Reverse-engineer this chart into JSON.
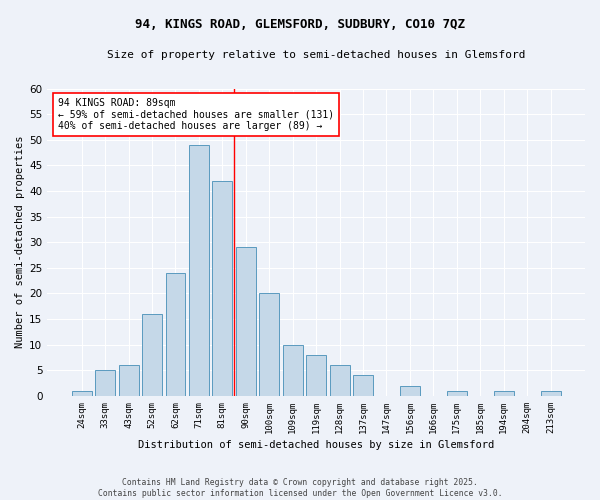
{
  "title1": "94, KINGS ROAD, GLEMSFORD, SUDBURY, CO10 7QZ",
  "title2": "Size of property relative to semi-detached houses in Glemsford",
  "xlabel": "Distribution of semi-detached houses by size in Glemsford",
  "ylabel": "Number of semi-detached properties",
  "categories": [
    "24sqm",
    "33sqm",
    "43sqm",
    "52sqm",
    "62sqm",
    "71sqm",
    "81sqm",
    "90sqm",
    "100sqm",
    "109sqm",
    "119sqm",
    "128sqm",
    "137sqm",
    "147sqm",
    "156sqm",
    "166sqm",
    "175sqm",
    "185sqm",
    "194sqm",
    "204sqm",
    "213sqm"
  ],
  "values": [
    1,
    5,
    6,
    16,
    24,
    49,
    42,
    29,
    20,
    10,
    8,
    6,
    4,
    0,
    2,
    0,
    1,
    0,
    1,
    0,
    1
  ],
  "bar_color": "#c5d8e8",
  "bar_edge_color": "#5a9abf",
  "reference_line_index": 7,
  "annotation_title": "94 KINGS ROAD: 89sqm",
  "annotation_line1": "← 59% of semi-detached houses are smaller (131)",
  "annotation_line2": "40% of semi-detached houses are larger (89) →",
  "background_color": "#eef2f9",
  "grid_color": "#ffffff",
  "footer1": "Contains HM Land Registry data © Crown copyright and database right 2025.",
  "footer2": "Contains public sector information licensed under the Open Government Licence v3.0.",
  "ylim": [
    0,
    60
  ],
  "yticks": [
    0,
    5,
    10,
    15,
    20,
    25,
    30,
    35,
    40,
    45,
    50,
    55,
    60
  ]
}
